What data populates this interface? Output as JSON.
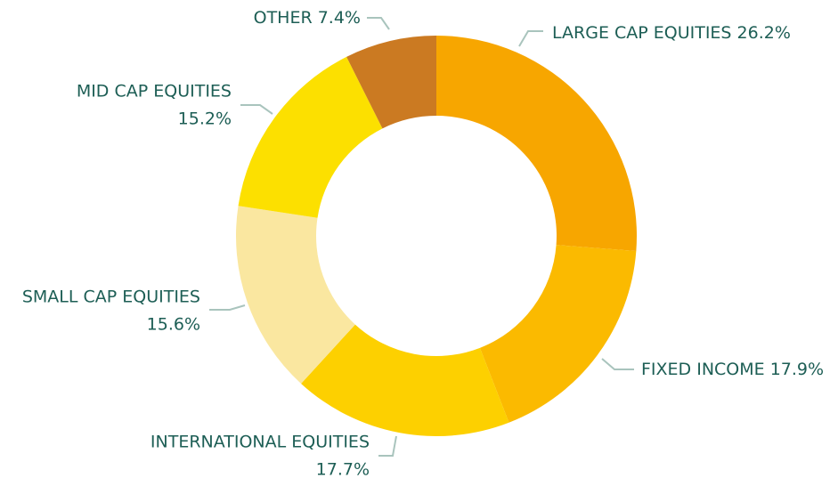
{
  "chart_data": {
    "type": "donut",
    "categories": [
      "LARGE CAP EQUITIES",
      "FIXED INCOME",
      "INTERNATIONAL EQUITIES",
      "SMALL CAP EQUITIES",
      "MID CAP EQUITIES",
      "OTHER"
    ],
    "values": [
      26.2,
      17.9,
      17.7,
      15.6,
      15.2,
      7.4
    ],
    "value_labels": [
      "26.2%",
      "17.9%",
      "17.7%",
      "15.6%",
      "15.2%",
      "7.4%"
    ],
    "colors": [
      "#f7a600",
      "#fbba00",
      "#fdd000",
      "#fae7a0",
      "#fce000",
      "#cb7a22"
    ]
  }
}
